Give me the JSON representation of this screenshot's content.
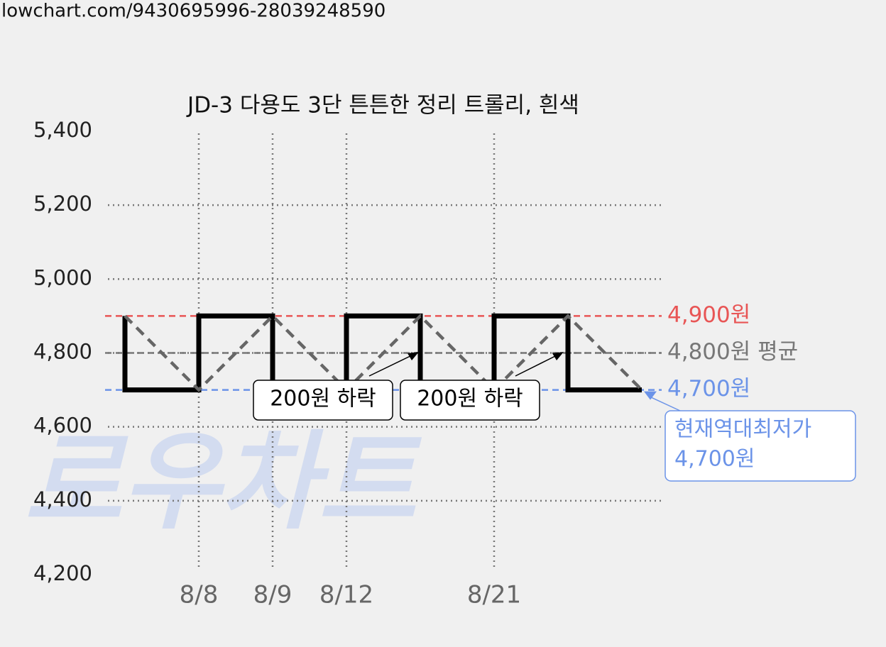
{
  "url": "lowchart.com/9430695996-28039248590",
  "watermark": "로우차트",
  "chart_data": {
    "type": "line",
    "title": "JD-3 다용도 3단 튼튼한 정리 트롤리, 흰색",
    "categories": [
      null,
      "8/8",
      "8/9",
      "8/12",
      null,
      "8/21",
      null,
      null
    ],
    "series": [
      {
        "values": [
          4900,
          4700,
          4900,
          4700,
          4900,
          4700,
          4900,
          4700
        ],
        "color": "#666666"
      }
    ],
    "step_color": "#000000",
    "ylim": [
      4200,
      5400
    ],
    "yticks": [
      {
        "value": 4200,
        "label": "4,200"
      },
      {
        "value": 4400,
        "label": "4,400"
      },
      {
        "value": 4600,
        "label": "4,600"
      },
      {
        "value": 4800,
        "label": "4,800"
      },
      {
        "value": 5000,
        "label": "5,000"
      },
      {
        "value": 5200,
        "label": "5,200"
      },
      {
        "value": 5400,
        "label": "5,400"
      }
    ],
    "grid": true,
    "reference_lines": [
      {
        "value": 4900,
        "label": "4,900원",
        "color": "#e85555"
      },
      {
        "value": 4800,
        "label": "4,800원 평균",
        "color": "#777777"
      },
      {
        "value": 4700,
        "label": "4,700원",
        "color": "#6b93e8"
      }
    ],
    "annotations": [
      "200원 하락",
      "200원 하락"
    ],
    "current_low": {
      "title": "현재역대최저가",
      "label": "4,700원",
      "value": 4700
    }
  }
}
